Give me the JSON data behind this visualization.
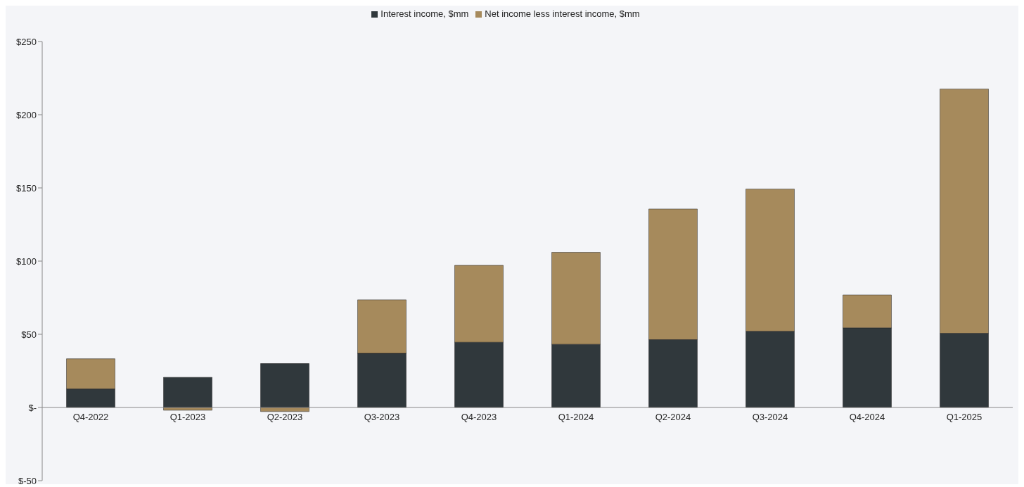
{
  "chart_data": {
    "type": "bar",
    "stacked": true,
    "categories": [
      "Q4-2022",
      "Q1-2023",
      "Q2-2023",
      "Q3-2023",
      "Q4-2023",
      "Q1-2024",
      "Q2-2024",
      "Q3-2024",
      "Q4-2024",
      "Q1-2025"
    ],
    "series": [
      {
        "name": "Interest income, $mm",
        "color": "#30383c",
        "values": [
          12.7,
          20.6,
          30,
          37,
          44.6,
          43.2,
          46.4,
          52.1,
          54.4,
          50.7
        ]
      },
      {
        "name": "Net income less interest income, $mm",
        "color": "#a68a5c",
        "values": [
          20.6,
          -1.9,
          -2.8,
          36.6,
          52.5,
          62.8,
          89.2,
          97.1,
          22.5,
          166.9
        ]
      }
    ],
    "ylim": [
      -50,
      250
    ],
    "yticks": [
      {
        "value": -50,
        "label": "$-50"
      },
      {
        "value": 0,
        "label": "$-"
      },
      {
        "value": 50,
        "label": "$50"
      },
      {
        "value": 100,
        "label": "$100"
      },
      {
        "value": 150,
        "label": "$150"
      },
      {
        "value": 200,
        "label": "$200"
      },
      {
        "value": 250,
        "label": "$250"
      }
    ],
    "grid": false,
    "legend": "top"
  }
}
